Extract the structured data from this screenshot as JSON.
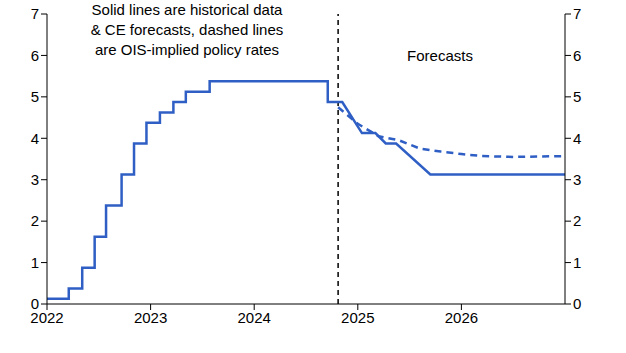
{
  "chart_data": {
    "type": "line",
    "note": [
      "Solid lines are historical data",
      "& CE forecasts, dashed lines",
      "are OIS-implied policy rates"
    ],
    "forecast_label": "Forecasts",
    "vertical_line": 2024.81,
    "xlim": [
      2022,
      2027
    ],
    "xticks": [
      2022,
      2023,
      2024,
      2025,
      2026
    ],
    "ylim": [
      0,
      7
    ],
    "yticks": [
      0,
      1,
      2,
      3,
      4,
      5,
      6,
      7
    ],
    "y2lim": [
      0,
      7
    ],
    "y2ticks": [
      0,
      1,
      2,
      3,
      4,
      5,
      6,
      7
    ],
    "series": [
      {
        "color": "#2f5fc4",
        "line_style": "solid",
        "x": [
          2022,
          2022.21,
          2022.21,
          2022.34,
          2022.34,
          2022.46,
          2022.46,
          2022.57,
          2022.57,
          2022.72,
          2022.72,
          2022.84,
          2022.84,
          2022.96,
          2022.96,
          2023.09,
          2023.09,
          2023.22,
          2023.22,
          2023.34,
          2023.34,
          2023.57,
          2023.57,
          2024.71,
          2024.71,
          2024.85,
          2025.04,
          2025.17,
          2025.27,
          2025.37,
          2025.7,
          2027
        ],
        "values": [
          0.125,
          0.125,
          0.375,
          0.375,
          0.875,
          0.875,
          1.625,
          1.625,
          2.375,
          2.375,
          3.125,
          3.125,
          3.875,
          3.875,
          4.375,
          4.375,
          4.625,
          4.625,
          4.875,
          4.875,
          5.125,
          5.125,
          5.375,
          5.375,
          4.875,
          4.875,
          4.125,
          4.125,
          3.875,
          3.875,
          3.125,
          3.125
        ]
      },
      {
        "color": "#2f5fc4",
        "line_style": "dashed",
        "x": [
          2024.81,
          2025.0,
          2025.2,
          2025.4,
          2025.6,
          2025.8,
          2026.0,
          2026.2,
          2026.5,
          2027
        ],
        "values": [
          4.75,
          4.35,
          4.05,
          3.95,
          3.75,
          3.68,
          3.62,
          3.57,
          3.55,
          3.57
        ]
      }
    ]
  }
}
